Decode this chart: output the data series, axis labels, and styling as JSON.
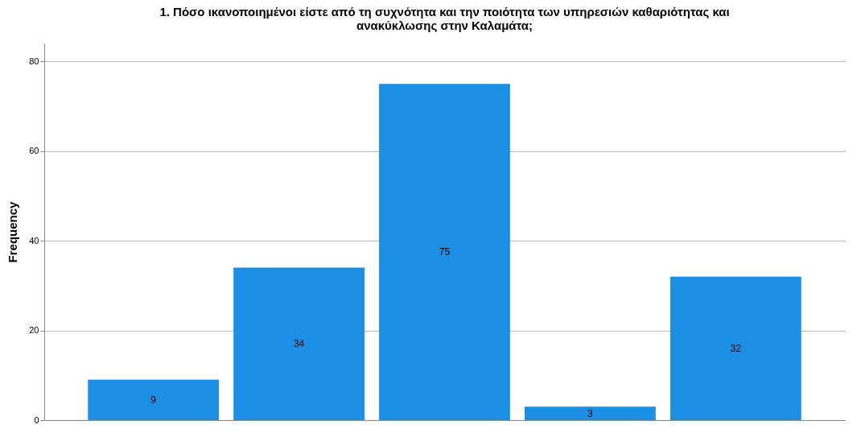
{
  "chart_data": {
    "type": "bar",
    "title": "1.  Πόσο ικανοποιημένοι είστε από τη συχνότητα και την ποιότητα των υπηρεσιών καθαριότητας και ανακύκλωσης στην Καλαμάτα;",
    "ylabel": "Frequency",
    "categories": [
      null,
      null,
      null,
      null,
      null
    ],
    "values": [
      9,
      34,
      75,
      3,
      32
    ],
    "color": "#1a8fe3",
    "ylim": [
      0,
      84
    ],
    "yticks": [
      0,
      20,
      40,
      60,
      80
    ],
    "grid": "y",
    "data_labels": true
  }
}
